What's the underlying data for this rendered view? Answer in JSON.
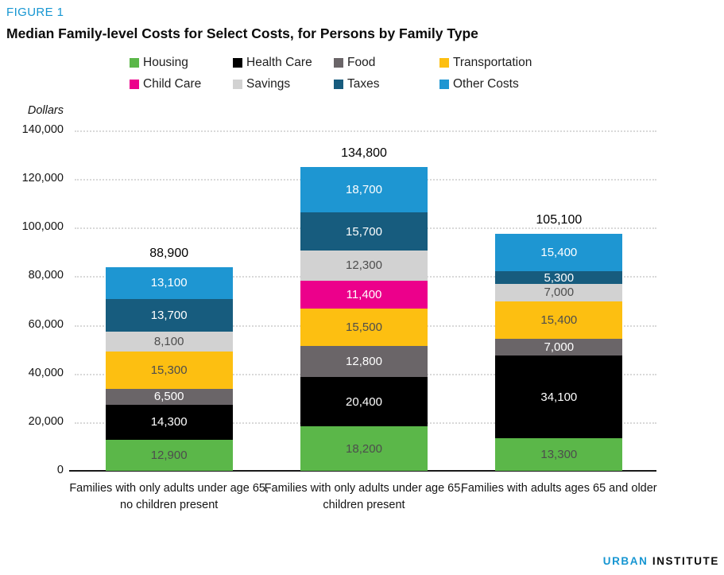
{
  "figure_label": "FIGURE 1",
  "title": "Median Family-level Costs for Select Costs, for Persons by Family Type",
  "y_axis_unit": "Dollars",
  "footer": {
    "brand_primary": "URBAN",
    "brand_secondary": "INSTITUTE"
  },
  "chart_data": {
    "type": "bar",
    "stacked": true,
    "title": "Median Family-level Costs for Select Costs, for Persons by Family Type",
    "ylabel": "Dollars",
    "ylim": [
      0,
      140000
    ],
    "y_ticks": [
      140000,
      120000,
      100000,
      80000,
      60000,
      40000,
      20000,
      0
    ],
    "grid": "dotted-horizontal",
    "legend_position": "top",
    "categories": [
      "Families with only adults under age 65, no children present",
      "Families with only adults under age 65, children present",
      "Families with adults ages 65 and older"
    ],
    "totals": [
      88900,
      134800,
      105100
    ],
    "series": [
      {
        "name": "Housing",
        "color": "#5bb749",
        "label_color": "#4d4d4d",
        "values": [
          12900,
          18200,
          13300
        ]
      },
      {
        "name": "Health Care",
        "color": "#000000",
        "label_color": "#ffffff",
        "values": [
          14300,
          20400,
          34100
        ]
      },
      {
        "name": "Food",
        "color": "#6a6568",
        "label_color": "#ffffff",
        "values": [
          6500,
          12800,
          7000
        ]
      },
      {
        "name": "Transportation",
        "color": "#fdbf11",
        "label_color": "#4d4d4d",
        "values": [
          15300,
          15500,
          15400
        ]
      },
      {
        "name": "Child Care",
        "color": "#ec008b",
        "label_color": "#ffffff",
        "values": [
          0,
          11400,
          0
        ]
      },
      {
        "name": "Savings",
        "color": "#d2d2d2",
        "label_color": "#4d4d4d",
        "values": [
          8100,
          12300,
          7000
        ]
      },
      {
        "name": "Taxes",
        "color": "#175c7e",
        "label_color": "#ffffff",
        "values": [
          13700,
          15700,
          5300
        ]
      },
      {
        "name": "Other Costs",
        "color": "#1e96d2",
        "label_color": "#ffffff",
        "values": [
          13100,
          18700,
          15400
        ]
      }
    ]
  }
}
